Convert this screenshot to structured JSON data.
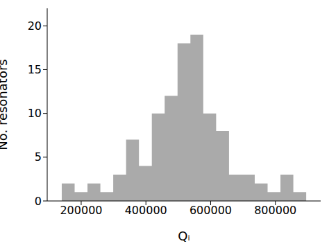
{
  "chart_data": {
    "type": "histogram",
    "xlabel": "Qᵢ",
    "ylabel": "No. resonators",
    "bins": [
      140000,
      179750,
      219500,
      259250,
      299000,
      338750,
      378500,
      418250,
      458000,
      497750,
      537500,
      577250,
      617000,
      656750,
      696500,
      736250,
      776000,
      815750,
      855500,
      895250
    ],
    "counts": [
      2,
      1,
      2,
      1,
      3,
      7,
      4,
      10,
      12,
      18,
      19,
      10,
      8,
      3,
      3,
      2,
      1,
      3,
      1
    ],
    "color": "#aaaaaa",
    "xlim": [
      95000,
      940000
    ],
    "xticks": [
      200000,
      400000,
      600000,
      800000
    ],
    "ylim": [
      0,
      22
    ],
    "yticks": [
      0,
      5,
      10,
      15,
      20
    ],
    "grid": false
  }
}
